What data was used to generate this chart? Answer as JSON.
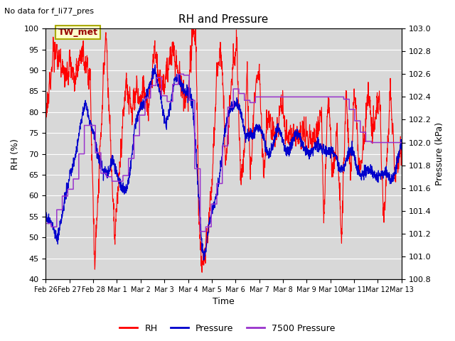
{
  "title": "RH and Pressure",
  "subtitle": "No data for f_li77_pres",
  "xlabel": "Time",
  "ylabel_left": "RH (%)",
  "ylabel_right": "Pressure (kPa)",
  "ylim_left": [
    40,
    100
  ],
  "ylim_right": [
    100.8,
    103.0
  ],
  "xtick_labels": [
    "Feb 26",
    "Feb 27",
    "Feb 28",
    "Mar 1",
    "Mar 2",
    "Mar 3",
    "Mar 4",
    "Mar 5",
    "Mar 6",
    "Mar 7",
    "Mar 8",
    "Mar 9",
    "Mar 10",
    "Mar 11",
    "Mar 12",
    "Mar 13"
  ],
  "legend_labels": [
    "RH",
    "Pressure",
    "7500 Pressure"
  ],
  "colors": {
    "RH": "#ff0000",
    "Pressure": "#0000cc",
    "7500_Pressure": "#9933cc",
    "background": "#d8d8d8",
    "label_box": "#ffffcc",
    "label_box_border": "#aaaa00"
  },
  "station_label": "TW_met",
  "yticks_left": [
    40,
    45,
    50,
    55,
    60,
    65,
    70,
    75,
    80,
    85,
    90,
    95,
    100
  ],
  "yticks_right": [
    100.8,
    101.0,
    101.2,
    101.4,
    101.6,
    101.8,
    102.0,
    102.2,
    102.4,
    102.6,
    102.8,
    103.0
  ],
  "grid_color": "#ffffff",
  "n_points": 2000
}
